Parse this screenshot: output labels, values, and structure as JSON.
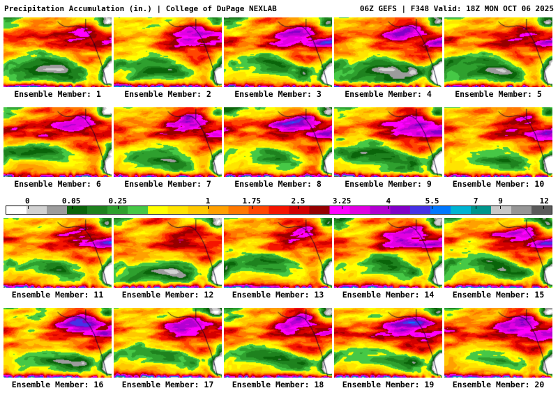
{
  "header": {
    "left_title": "Precipitation Accumulation (in.) | College of DuPage NEXLAB",
    "right_title": "06Z GEFS | F348 Valid: 18Z MON OCT 06 2025"
  },
  "legend": {
    "tick_labels": [
      "0",
      "0.05",
      "0.25",
      "1",
      "1.75",
      "2.5",
      "3.25",
      "4",
      "5.5",
      "7",
      "9",
      "12"
    ],
    "tick_positions_pct": [
      4,
      12,
      20.5,
      37,
      45,
      53.5,
      61.5,
      70,
      78,
      86,
      90.5,
      98.5
    ],
    "colors": [
      "#ffffff",
      "#d2d2d2",
      "#9c9c9c",
      "#0a640a",
      "#1e821e",
      "#2ea02e",
      "#46c846",
      "#ffff00",
      "#ffe400",
      "#ffc800",
      "#ffa000",
      "#ff7800",
      "#ff4600",
      "#f51400",
      "#d20000",
      "#960000",
      "#ff00ff",
      "#e100e1",
      "#b400d2",
      "#8200c8",
      "#4632e6",
      "#0078ff",
      "#00b4d2",
      "#00968c",
      "#c8c8c8",
      "#969696",
      "#5a5a5a"
    ]
  },
  "panels": [
    {
      "id": 1,
      "label": "Ensemble Member: 1"
    },
    {
      "id": 2,
      "label": "Ensemble Member: 2"
    },
    {
      "id": 3,
      "label": "Ensemble Member: 3"
    },
    {
      "id": 4,
      "label": "Ensemble Member: 4"
    },
    {
      "id": 5,
      "label": "Ensemble Member: 5"
    },
    {
      "id": 6,
      "label": "Ensemble Member: 6"
    },
    {
      "id": 7,
      "label": "Ensemble Member: 7"
    },
    {
      "id": 8,
      "label": "Ensemble Member: 8"
    },
    {
      "id": 9,
      "label": "Ensemble Member: 9"
    },
    {
      "id": 10,
      "label": "Ensemble Member: 10"
    },
    {
      "id": 11,
      "label": "Ensemble Member: 11"
    },
    {
      "id": 12,
      "label": "Ensemble Member: 12"
    },
    {
      "id": 13,
      "label": "Ensemble Member: 13"
    },
    {
      "id": 14,
      "label": "Ensemble Member: 14"
    },
    {
      "id": 15,
      "label": "Ensemble Member: 15"
    },
    {
      "id": 16,
      "label": "Ensemble Member: 16"
    },
    {
      "id": 17,
      "label": "Ensemble Member: 17"
    },
    {
      "id": 18,
      "label": "Ensemble Member: 18"
    },
    {
      "id": 19,
      "label": "Ensemble Member: 19"
    },
    {
      "id": 20,
      "label": "Ensemble Member: 20"
    }
  ]
}
